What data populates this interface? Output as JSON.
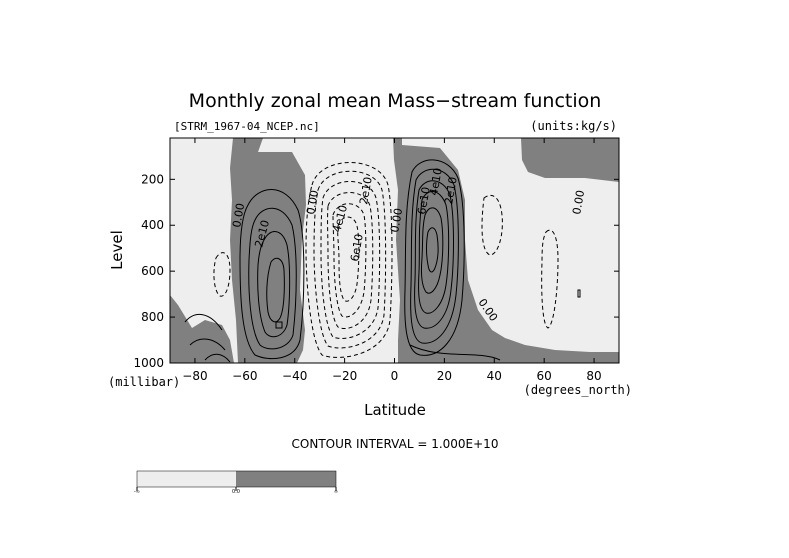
{
  "chart_data": {
    "type": "contour",
    "title": "Monthly zonal mean Mass−stream function",
    "file_label": "[STRM_1967-04_NCEP.nc]",
    "units_label": "(units:kg/s)",
    "xlabel": "Latitude",
    "xunit": "(degrees_north)",
    "ylabel": "Level",
    "yunit": "(millibar)",
    "xlim": [
      -90,
      90
    ],
    "ylim": [
      1000,
      20
    ],
    "x_ticks": [
      -80,
      -60,
      -40,
      -20,
      0,
      20,
      40,
      60,
      80
    ],
    "x_tick_labels": [
      "−80",
      "−60",
      "−40",
      "−20",
      "0",
      "20",
      "40",
      "60",
      "80"
    ],
    "y_ticks": [
      200,
      400,
      600,
      800,
      1000
    ],
    "y_tick_labels": [
      "200",
      "400",
      "600",
      "800",
      "1000"
    ],
    "contour_interval_text": "CONTOUR INTERVAL = 1.000E+10",
    "contour_labels": [
      "0.00",
      "2e10",
      "0.00",
      "4e10",
      "2e10",
      "6e10",
      "0.00",
      "6e10",
      "4e10",
      "2e10",
      "0.00",
      "0.00"
    ],
    "colorbar": {
      "labels": [
        "-∞",
        "0.0",
        "∞"
      ],
      "colors": [
        "#eeeeee",
        "#808080"
      ]
    },
    "colors": {
      "positive_fill": "#808080",
      "negative_fill": "#eeeeee",
      "line": "#000000"
    }
  }
}
